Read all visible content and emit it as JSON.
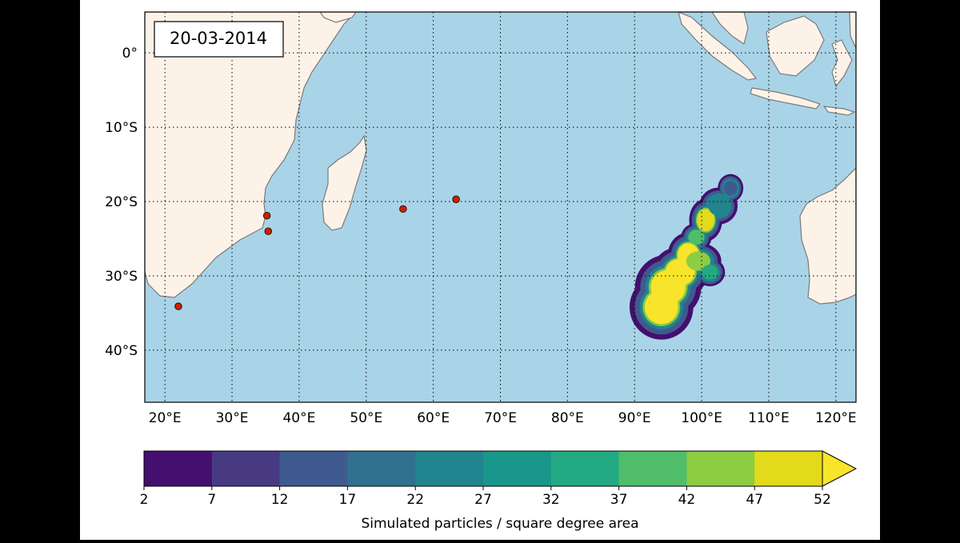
{
  "map": {
    "date_label": "20-03-2014",
    "colors": {
      "ocean": "#a9d4e8",
      "land": "#fdf2e8",
      "coast": "#7a7a7a",
      "marker": "#cc2200"
    },
    "x_ticks": [
      {
        "value": 20,
        "label": "20°E"
      },
      {
        "value": 30,
        "label": "30°E"
      },
      {
        "value": 40,
        "label": "40°E"
      },
      {
        "value": 50,
        "label": "50°E"
      },
      {
        "value": 60,
        "label": "60°E"
      },
      {
        "value": 70,
        "label": "70°E"
      },
      {
        "value": 80,
        "label": "80°E"
      },
      {
        "value": 90,
        "label": "90°E"
      },
      {
        "value": 100,
        "label": "100°E"
      },
      {
        "value": 110,
        "label": "110°E"
      },
      {
        "value": 120,
        "label": "120°E"
      }
    ],
    "y_ticks": [
      {
        "value": 0,
        "label": "0°"
      },
      {
        "value": -10,
        "label": "10°S"
      },
      {
        "value": -20,
        "label": "20°S"
      },
      {
        "value": -30,
        "label": "30°S"
      },
      {
        "value": -40,
        "label": "40°S"
      }
    ],
    "lon_range": [
      17,
      123
    ],
    "lat_range": [
      -47,
      5.5
    ],
    "grid": true,
    "markers": [
      {
        "lon": 35.2,
        "lat": -21.9
      },
      {
        "lon": 35.4,
        "lat": -24.0
      },
      {
        "lon": 22.0,
        "lat": -34.1
      },
      {
        "lon": 55.5,
        "lat": -21.0
      },
      {
        "lon": 63.4,
        "lat": -19.7
      }
    ],
    "density_blobs": [
      {
        "lon": 94.0,
        "lat": -34.2,
        "rx": 2.5,
        "ry": 2.3,
        "level": 52
      },
      {
        "lon": 95.0,
        "lat": -31.5,
        "rx": 2.6,
        "ry": 2.3,
        "level": 52
      },
      {
        "lon": 96.8,
        "lat": -29.5,
        "rx": 2.2,
        "ry": 1.8,
        "level": 52
      },
      {
        "lon": 98.0,
        "lat": -27.2,
        "rx": 1.6,
        "ry": 1.6,
        "level": 52
      },
      {
        "lon": 99.5,
        "lat": -28.0,
        "rx": 1.8,
        "ry": 1.3,
        "level": 42
      },
      {
        "lon": 101.2,
        "lat": -29.5,
        "rx": 1.2,
        "ry": 1.0,
        "level": 32
      },
      {
        "lon": 100.6,
        "lat": -22.5,
        "rx": 1.3,
        "ry": 1.5,
        "level": 47
      },
      {
        "lon": 102.5,
        "lat": -20.6,
        "rx": 1.5,
        "ry": 1.3,
        "level": 22
      },
      {
        "lon": 104.3,
        "lat": -18.2,
        "rx": 1.0,
        "ry": 1.0,
        "level": 12
      },
      {
        "lon": 99.2,
        "lat": -24.8,
        "rx": 1.2,
        "ry": 1.0,
        "level": 37
      }
    ]
  },
  "colorbar": {
    "ticks": [
      "2",
      "7",
      "12",
      "17",
      "22",
      "27",
      "32",
      "37",
      "42",
      "47",
      "52"
    ],
    "colors": [
      "#440f6e",
      "#473a83",
      "#3f5a8f",
      "#30718f",
      "#21848e",
      "#1a978b",
      "#24aa82",
      "#50bd6b",
      "#8ccd42",
      "#e2da1b"
    ],
    "extend_color": "#f8e42a",
    "label": "Simulated particles / square degree area"
  }
}
